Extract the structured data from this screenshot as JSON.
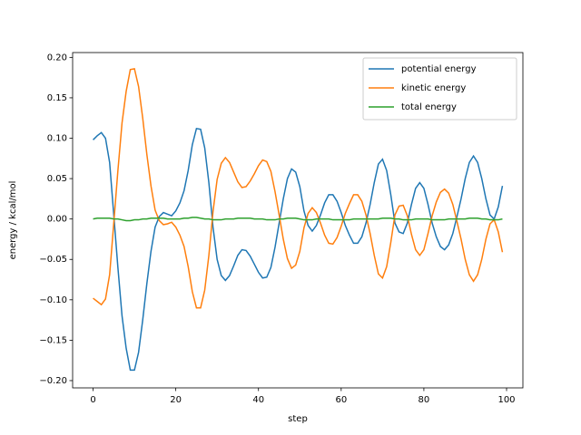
{
  "chart_data": {
    "type": "line",
    "xlabel": "step",
    "ylabel": "energy / kcal/mol",
    "legend": "upper right",
    "xlim": [
      -4.95,
      103.95
    ],
    "ylim": [
      -0.209,
      0.206
    ],
    "xticks": [
      0,
      20,
      40,
      60,
      80,
      100
    ],
    "yticks": [
      {
        "value": -0.2,
        "label": "−0.20"
      },
      {
        "value": -0.15,
        "label": "−0.15"
      },
      {
        "value": -0.1,
        "label": "−0.10"
      },
      {
        "value": -0.05,
        "label": "−0.05"
      },
      {
        "value": 0,
        "label": "0.00"
      },
      {
        "value": 0.05,
        "label": "0.05"
      },
      {
        "value": 0.1,
        "label": "0.10"
      },
      {
        "value": 0.15,
        "label": "0.15"
      },
      {
        "value": 0.2,
        "label": "0.20"
      }
    ],
    "x": [
      0,
      1,
      2,
      3,
      4,
      5,
      6,
      7,
      8,
      9,
      10,
      11,
      12,
      13,
      14,
      15,
      16,
      17,
      18,
      19,
      20,
      21,
      22,
      23,
      24,
      25,
      26,
      27,
      28,
      29,
      30,
      31,
      32,
      33,
      34,
      35,
      36,
      37,
      38,
      39,
      40,
      41,
      42,
      43,
      44,
      45,
      46,
      47,
      48,
      49,
      50,
      51,
      52,
      53,
      54,
      55,
      56,
      57,
      58,
      59,
      60,
      61,
      62,
      63,
      64,
      65,
      66,
      67,
      68,
      69,
      70,
      71,
      72,
      73,
      74,
      75,
      76,
      77,
      78,
      79,
      80,
      81,
      82,
      83,
      84,
      85,
      86,
      87,
      88,
      89,
      90,
      91,
      92,
      93,
      94,
      95,
      96,
      97,
      98,
      99
    ],
    "series": [
      {
        "name": "potential energy",
        "color": "#1f77b4",
        "values": [
          0.098,
          0.103,
          0.107,
          0.1,
          0.07,
          0.005,
          -0.06,
          -0.12,
          -0.16,
          -0.187,
          -0.187,
          -0.165,
          -0.125,
          -0.08,
          -0.04,
          -0.01,
          0.003,
          0.008,
          0.006,
          0.004,
          0.01,
          0.02,
          0.035,
          0.06,
          0.092,
          0.112,
          0.111,
          0.088,
          0.045,
          -0.01,
          -0.05,
          -0.07,
          -0.076,
          -0.07,
          -0.058,
          -0.045,
          -0.038,
          -0.039,
          -0.046,
          -0.056,
          -0.066,
          -0.073,
          -0.072,
          -0.06,
          -0.035,
          -0.005,
          0.025,
          0.05,
          0.062,
          0.058,
          0.04,
          0.01,
          -0.008,
          -0.015,
          -0.008,
          0.005,
          0.02,
          0.03,
          0.03,
          0.022,
          0.008,
          -0.008,
          -0.02,
          -0.03,
          -0.03,
          -0.022,
          -0.005,
          0.018,
          0.045,
          0.068,
          0.074,
          0.06,
          0.03,
          -0.005,
          -0.016,
          -0.018,
          -0.005,
          0.018,
          0.038,
          0.045,
          0.038,
          0.018,
          -0.005,
          -0.022,
          -0.034,
          -0.038,
          -0.032,
          -0.018,
          0.003,
          0.025,
          0.05,
          0.07,
          0.078,
          0.07,
          0.05,
          0.025,
          0.005,
          0.0,
          0.015,
          0.041
        ]
      },
      {
        "name": "kinetic energy",
        "color": "#ff7f0e",
        "values": [
          -0.098,
          -0.102,
          -0.106,
          -0.099,
          -0.069,
          -0.005,
          0.06,
          0.119,
          0.158,
          0.185,
          0.186,
          0.164,
          0.125,
          0.08,
          0.041,
          0.011,
          -0.002,
          -0.007,
          -0.006,
          -0.004,
          -0.01,
          -0.02,
          -0.034,
          -0.059,
          -0.09,
          -0.11,
          -0.11,
          -0.088,
          -0.045,
          0.009,
          0.049,
          0.069,
          0.076,
          0.07,
          0.058,
          0.046,
          0.039,
          0.04,
          0.047,
          0.056,
          0.066,
          0.073,
          0.071,
          0.059,
          0.034,
          0.005,
          -0.025,
          -0.049,
          -0.061,
          -0.057,
          -0.04,
          -0.011,
          0.007,
          0.014,
          0.008,
          -0.005,
          -0.02,
          -0.03,
          -0.031,
          -0.023,
          -0.009,
          0.007,
          0.019,
          0.03,
          0.03,
          0.022,
          0.005,
          -0.018,
          -0.045,
          -0.068,
          -0.073,
          -0.059,
          -0.029,
          0.005,
          0.016,
          0.017,
          0.004,
          -0.019,
          -0.038,
          -0.045,
          -0.038,
          -0.018,
          0.004,
          0.021,
          0.033,
          0.037,
          0.032,
          0.018,
          -0.003,
          -0.025,
          -0.05,
          -0.069,
          -0.077,
          -0.069,
          -0.05,
          -0.025,
          -0.006,
          -0.001,
          -0.016,
          -0.041
        ]
      },
      {
        "name": "total energy",
        "color": "#2ca02c",
        "values": [
          0,
          0.001,
          0.001,
          0.001,
          0.001,
          0,
          0,
          -0.001,
          -0.002,
          -0.002,
          -0.001,
          -0.001,
          0,
          0,
          0.001,
          0.001,
          0.001,
          0.001,
          0,
          0,
          0,
          0,
          0.001,
          0.001,
          0.002,
          0.002,
          0.001,
          0,
          0,
          -0.001,
          -0.001,
          -0.001,
          0,
          0,
          0,
          0.001,
          0.001,
          0.001,
          0.001,
          0,
          0,
          0,
          -0.001,
          -0.001,
          -0.001,
          0,
          0,
          0.001,
          0.001,
          0.001,
          0,
          -0.001,
          -0.001,
          -0.001,
          0,
          0,
          0,
          0,
          -0.001,
          -0.001,
          -0.001,
          -0.001,
          -0.001,
          0,
          0,
          0,
          0,
          0,
          0,
          0,
          0.001,
          0.001,
          0.001,
          0,
          0,
          -0.001,
          -0.001,
          -0.001,
          0,
          0,
          0,
          0,
          -0.001,
          -0.001,
          -0.001,
          -0.001,
          0,
          0,
          0,
          0,
          0,
          0.001,
          0.001,
          0.001,
          0,
          0,
          -0.001,
          -0.001,
          -0.001,
          0
        ]
      }
    ]
  }
}
